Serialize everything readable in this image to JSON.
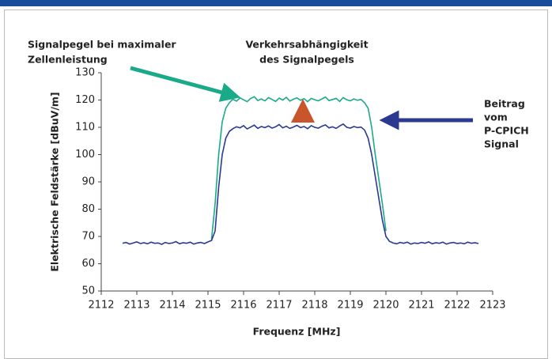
{
  "chart_data": {
    "type": "line",
    "x_label": "Frequenz [MHz]",
    "y_label": "Elektrische Feldstärke [dBuV/m]",
    "annotations": [
      [
        "Signalpegel bei maximaler",
        "Zellenleistung"
      ],
      [
        "Verkehrsabhängigkeit",
        "des Signalpegels"
      ],
      [
        "Beitrag",
        "vom",
        "P-CPICH",
        "Signal"
      ]
    ],
    "xlim": [
      2112,
      2123
    ],
    "xticks": [
      2112,
      2113,
      2114,
      2115,
      2116,
      2117,
      2118,
      2119,
      2120,
      2121,
      2122,
      2123
    ],
    "ylim": [
      50,
      130
    ],
    "yticks": [
      50,
      60,
      70,
      80,
      90,
      100,
      110,
      120,
      130
    ],
    "grid": false,
    "x": [
      2112.6,
      2112.7,
      2112.8,
      2112.9,
      2113,
      2113.1,
      2113.2,
      2113.3,
      2113.4,
      2113.5,
      2113.6,
      2113.7,
      2113.8,
      2113.9,
      2114,
      2114.1,
      2114.2,
      2114.3,
      2114.4,
      2114.5,
      2114.6,
      2114.7,
      2114.8,
      2114.9,
      2115,
      2115.1,
      2115.2,
      2115.3,
      2115.4,
      2115.5,
      2115.6,
      2115.7,
      2115.8,
      2115.9,
      2116,
      2116.1,
      2116.2,
      2116.3,
      2116.4,
      2116.5,
      2116.6,
      2116.7,
      2116.8,
      2116.9,
      2117,
      2117.1,
      2117.2,
      2117.3,
      2117.4,
      2117.5,
      2117.6,
      2117.7,
      2117.8,
      2117.9,
      2118,
      2118.1,
      2118.2,
      2118.3,
      2118.4,
      2118.5,
      2118.6,
      2118.7,
      2118.8,
      2118.9,
      2119,
      2119.1,
      2119.2,
      2119.3,
      2119.4,
      2119.5,
      2119.6,
      2119.7,
      2119.8,
      2119.9,
      2120,
      2120.1,
      2120.2,
      2120.3,
      2120.4,
      2120.5,
      2120.6,
      2120.7,
      2120.8,
      2120.9,
      2121,
      2121.1,
      2121.2,
      2121.3,
      2121.4,
      2121.5,
      2121.6,
      2121.7,
      2121.8,
      2121.9,
      2122,
      2122.1,
      2122.2,
      2122.3,
      2122.4,
      2122.5,
      2122.6
    ],
    "series": [
      {
        "color": "#1aaa8a",
        "values": [
          null,
          null,
          null,
          null,
          null,
          null,
          null,
          null,
          null,
          null,
          null,
          null,
          null,
          null,
          null,
          null,
          null,
          null,
          null,
          null,
          null,
          null,
          null,
          null,
          null,
          69,
          82,
          100,
          112,
          117,
          119,
          120.3,
          119.6,
          120.8,
          120.1,
          119.4,
          120.6,
          121.2,
          119.8,
          120.4,
          119.7,
          120.9,
          120.2,
          119.5,
          120.7,
          120.0,
          121.0,
          119.6,
          120.3,
          120.8,
          119.9,
          120.5,
          119.4,
          120.6,
          120.1,
          119.7,
          120.4,
          121.1,
          119.8,
          120.2,
          120.6,
          119.5,
          120.9,
          120.1,
          119.7,
          120.4,
          119.9,
          120.2,
          119,
          117,
          110,
          100,
          91,
          82,
          72,
          null,
          null,
          null,
          null,
          null,
          null,
          null,
          null,
          null,
          null,
          null,
          null,
          null,
          null,
          null,
          null,
          null,
          null,
          null,
          null,
          null,
          null,
          null,
          null,
          null,
          null
        ]
      },
      {
        "color": "#2b3990",
        "values": [
          67.5,
          67.8,
          67.2,
          67.6,
          68.0,
          67.4,
          67.7,
          67.3,
          67.9,
          67.5,
          67.6,
          67.1,
          67.8,
          67.4,
          67.6,
          68.1,
          67.3,
          67.7,
          67.5,
          67.9,
          67.2,
          67.6,
          67.8,
          67.4,
          68.0,
          68.5,
          72,
          88,
          100,
          106,
          108.5,
          109.5,
          110.2,
          109.8,
          110.6,
          109.4,
          110.1,
          110.8,
          109.6,
          110.3,
          109.9,
          110.5,
          109.7,
          110.2,
          111.0,
          109.8,
          110.4,
          109.6,
          110.1,
          110.7,
          109.9,
          110.3,
          109.5,
          110.6,
          110.0,
          109.7,
          110.4,
          110.9,
          109.8,
          110.2,
          109.6,
          110.5,
          111.2,
          110.0,
          109.7,
          110.3,
          109.9,
          110.1,
          109,
          106,
          100,
          92,
          84,
          76,
          70,
          68.2,
          67.6,
          67.3,
          67.8,
          67.5,
          67.9,
          67.2,
          67.6,
          67.4,
          67.8,
          67.5,
          68.0,
          67.3,
          67.7,
          67.5,
          67.9,
          67.2,
          67.6,
          67.8,
          67.4,
          67.6,
          67.3,
          67.9,
          67.5,
          67.7,
          67.4
        ]
      }
    ]
  }
}
